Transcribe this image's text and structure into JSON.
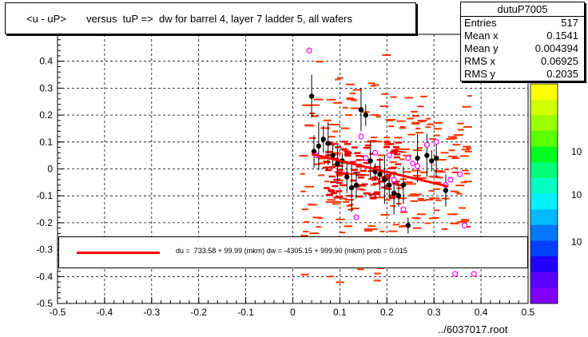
{
  "title": "<u - uP>       versus  tuP =>  dw for barrel 4, layer 7 ladder 5, all wafers",
  "stats": {
    "name": "dutuP7005",
    "rows": [
      {
        "label": "Entries",
        "value": "517"
      },
      {
        "label": "Mean x",
        "value": "0.1541"
      },
      {
        "label": "Mean y",
        "value": "0.004394"
      },
      {
        "label": "RMS x",
        "value": "0.06925"
      },
      {
        "label": "RMS y",
        "value": "0.2035"
      }
    ]
  },
  "legend": {
    "text": "du =  733.58 + 99.99 (mkm) dw = -4305.15 + 999.90 (mkm) prob = 0.015"
  },
  "footer": "../6037017.root",
  "colorbar": {
    "labels": [
      "10",
      "10",
      "10"
    ],
    "colors": [
      "#ffff00",
      "#d2ff00",
      "#9cff00",
      "#5aff00",
      "#00ff20",
      "#00ff78",
      "#00ffc0",
      "#00f0ff",
      "#00b8ff",
      "#0078ff",
      "#0040ff",
      "#2000ff",
      "#5a00ff",
      "#8000ff"
    ]
  },
  "chart_data": {
    "type": "scatter",
    "xlim": [
      -0.5,
      0.5
    ],
    "ylim": [
      -0.5,
      0.5
    ],
    "x_ticks": [
      -0.5,
      -0.4,
      -0.3,
      -0.2,
      -0.1,
      0,
      0.1,
      0.2,
      0.3,
      0.4,
      0.5
    ],
    "y_ticks": [
      -0.5,
      -0.4,
      -0.3,
      -0.2,
      -0.1,
      0,
      0.1,
      0.2,
      0.3,
      0.4
    ],
    "grid": true,
    "profile_points": [
      {
        "x": 0.045,
        "y": 0.065
      },
      {
        "x": 0.055,
        "y": 0.085
      },
      {
        "x": 0.065,
        "y": 0.11
      },
      {
        "x": 0.075,
        "y": 0.095
      },
      {
        "x": 0.085,
        "y": 0.05
      },
      {
        "x": 0.095,
        "y": 0.02
      },
      {
        "x": 0.105,
        "y": 0.03
      },
      {
        "x": 0.115,
        "y": -0.03
      },
      {
        "x": 0.125,
        "y": -0.07
      },
      {
        "x": 0.135,
        "y": -0.06
      },
      {
        "x": 0.145,
        "y": 0.22
      },
      {
        "x": 0.155,
        "y": 0.2
      },
      {
        "x": 0.165,
        "y": 0.03
      },
      {
        "x": 0.175,
        "y": -0.01
      },
      {
        "x": 0.185,
        "y": -0.02
      },
      {
        "x": 0.195,
        "y": -0.04
      },
      {
        "x": 0.205,
        "y": -0.06
      },
      {
        "x": 0.215,
        "y": -0.09
      },
      {
        "x": 0.225,
        "y": -0.1
      },
      {
        "x": 0.235,
        "y": -0.06
      },
      {
        "x": 0.245,
        "y": -0.21
      },
      {
        "x": 0.265,
        "y": 0.04
      },
      {
        "x": 0.285,
        "y": 0.05
      },
      {
        "x": 0.295,
        "y": 0.03
      },
      {
        "x": 0.305,
        "y": 0.04
      },
      {
        "x": 0.325,
        "y": -0.08
      },
      {
        "x": 0.04,
        "y": 0.27
      }
    ],
    "open_points": [
      {
        "x": 0.035,
        "y": 0.44
      },
      {
        "x": 0.05,
        "y": 0.05
      },
      {
        "x": 0.145,
        "y": 0.12
      },
      {
        "x": 0.155,
        "y": 0.04
      },
      {
        "x": 0.175,
        "y": 0.06
      },
      {
        "x": 0.135,
        "y": -0.18
      },
      {
        "x": 0.205,
        "y": 0.05
      },
      {
        "x": 0.215,
        "y": -0.04
      },
      {
        "x": 0.235,
        "y": -0.15
      },
      {
        "x": 0.245,
        "y": 0.04
      },
      {
        "x": 0.255,
        "y": 0.02
      },
      {
        "x": 0.265,
        "y": 0.01
      },
      {
        "x": 0.285,
        "y": 0.09
      },
      {
        "x": 0.305,
        "y": 0.1
      },
      {
        "x": 0.325,
        "y": -0.06
      },
      {
        "x": 0.335,
        "y": -0.04
      },
      {
        "x": 0.355,
        "y": -0.02
      },
      {
        "x": 0.365,
        "y": -0.21
      },
      {
        "x": 0.345,
        "y": -0.39
      },
      {
        "x": 0.385,
        "y": -0.39
      }
    ],
    "fit_line": {
      "x": [
        0.04,
        0.33
      ],
      "y": [
        0.055,
        -0.065
      ]
    },
    "legend_entries": [
      "du =  733.58 + 99.99 (mkm) dw = -4305.15 + 999.90 (mkm) prob = 0.015"
    ]
  }
}
